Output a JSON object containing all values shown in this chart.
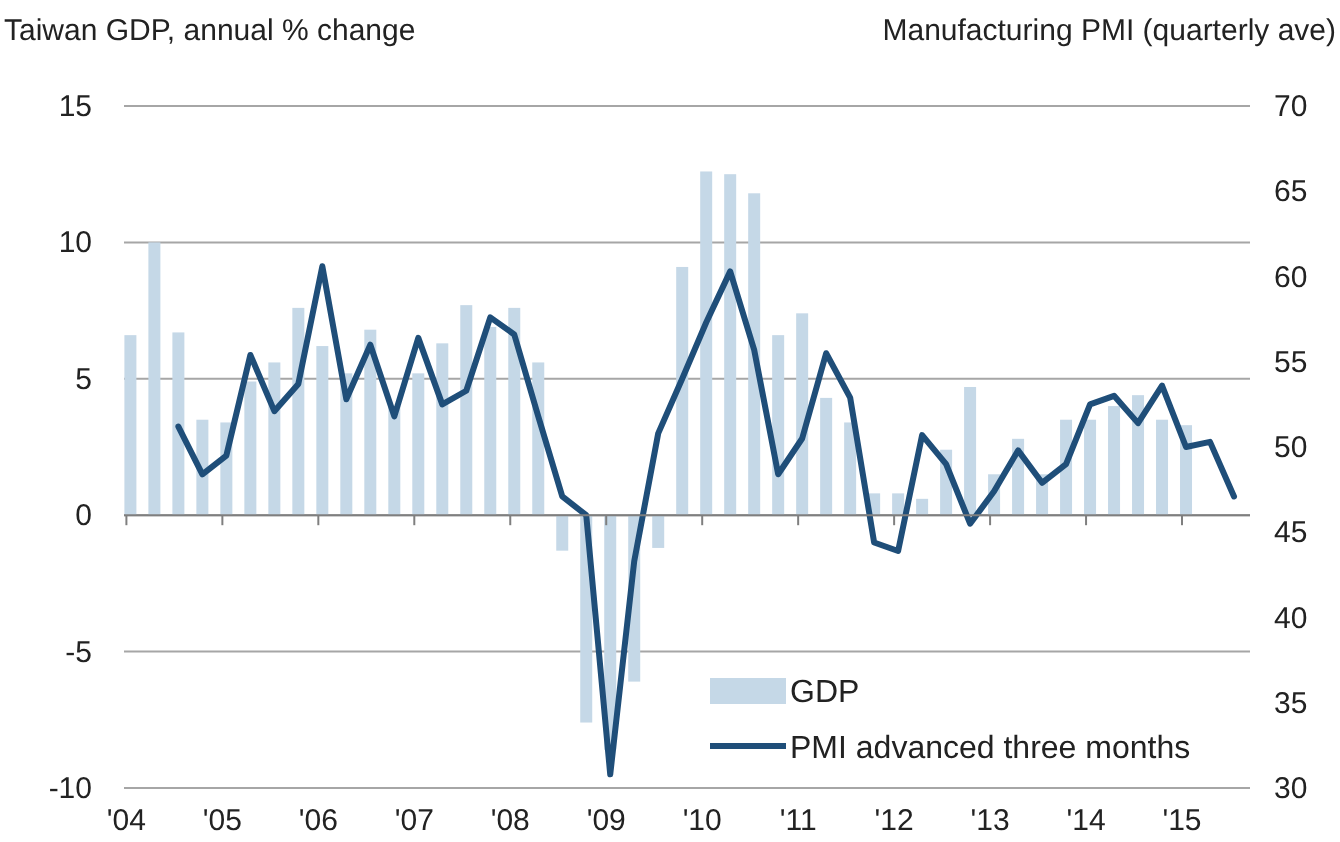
{
  "chart_data": {
    "type": "bar",
    "ylabel": "Taiwan GDP, annual % change",
    "y2label": "Manufacturing PMI (quarterly ave)",
    "categories": [
      "'04",
      null,
      null,
      null,
      "'05",
      null,
      null,
      null,
      "'06",
      null,
      null,
      null,
      "'07",
      null,
      null,
      null,
      "'08",
      null,
      null,
      null,
      "'09",
      null,
      null,
      null,
      "'10",
      null,
      null,
      null,
      "'11",
      null,
      null,
      null,
      "'12",
      null,
      null,
      null,
      "'13",
      null,
      null,
      null,
      "'14",
      null,
      null,
      null,
      "'15",
      null,
      null
    ],
    "series": [
      {
        "name": "GDP",
        "color": "#c5d8e7",
        "values": [
          6.6,
          10.0,
          6.7,
          3.5,
          3.4,
          4.9,
          5.6,
          7.6,
          6.2,
          5.2,
          6.8,
          4.0,
          5.2,
          6.3,
          7.7,
          6.9,
          7.6,
          5.6,
          -1.3,
          -7.6,
          -8.6,
          -6.1,
          -1.2,
          9.1,
          12.6,
          12.5,
          11.8,
          6.6,
          7.4,
          4.3,
          3.4,
          0.8,
          0.8,
          0.6,
          2.4,
          4.7,
          1.5,
          2.8,
          1.5,
          3.5,
          3.5,
          4.0,
          4.4,
          3.5,
          3.3,
          null,
          null
        ]
      },
      {
        "name": "PMI advanced three months",
        "type": "line",
        "axis": "y2",
        "color": "#1f4e79",
        "values": [
          null,
          null,
          51.2,
          48.4,
          49.5,
          55.4,
          52.1,
          53.7,
          60.6,
          52.8,
          56.0,
          51.8,
          56.4,
          52.5,
          53.3,
          57.6,
          56.6,
          51.8,
          47.1,
          46.0,
          30.8,
          43.3,
          50.8,
          54.0,
          57.3,
          60.3,
          55.7,
          48.4,
          50.5,
          55.5,
          52.9,
          44.4,
          43.9,
          50.7,
          49.0,
          45.5,
          47.4,
          49.8,
          47.9,
          49.0,
          52.5,
          53.0,
          51.4,
          53.6,
          50.0,
          50.3,
          47.1
        ]
      }
    ],
    "ylim": [
      -10,
      15
    ],
    "yticks": [
      -10,
      -5,
      0,
      5,
      10,
      15
    ],
    "y2lim": [
      30,
      70
    ],
    "y2ticks": [
      30,
      35,
      40,
      45,
      50,
      55,
      60,
      65,
      70
    ],
    "grid": "y",
    "legend": "bottom right"
  }
}
